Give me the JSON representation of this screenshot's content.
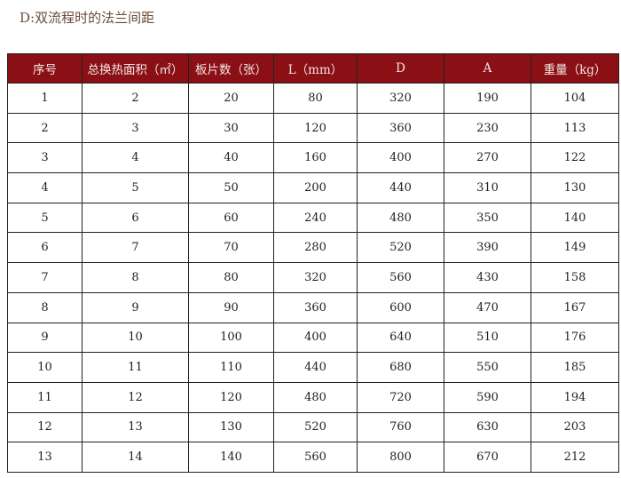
{
  "title": "D:双流程时的法兰间距",
  "colors": {
    "header_bg": "#8b1016",
    "header_text": "#f3e6e6"
  },
  "table": {
    "headers": [
      "序号",
      "总换热面积（㎡）",
      "板片数（张）",
      "L（mm）",
      "D",
      "A",
      "重量（kg）"
    ],
    "rows": [
      [
        "1",
        "2",
        "20",
        "80",
        "320",
        "190",
        "104"
      ],
      [
        "2",
        "3",
        "30",
        "120",
        "360",
        "230",
        "113"
      ],
      [
        "3",
        "4",
        "40",
        "160",
        "400",
        "270",
        "122"
      ],
      [
        "4",
        "5",
        "50",
        "200",
        "440",
        "310",
        "130"
      ],
      [
        "5",
        "6",
        "60",
        "240",
        "480",
        "350",
        "140"
      ],
      [
        "6",
        "7",
        "70",
        "280",
        "520",
        "390",
        "149"
      ],
      [
        "7",
        "8",
        "80",
        "320",
        "560",
        "430",
        "158"
      ],
      [
        "8",
        "9",
        "90",
        "360",
        "600",
        "470",
        "167"
      ],
      [
        "9",
        "10",
        "100",
        "400",
        "640",
        "510",
        "176"
      ],
      [
        "10",
        "11",
        "110",
        "440",
        "680",
        "550",
        "185"
      ],
      [
        "11",
        "12",
        "120",
        "480",
        "720",
        "590",
        "194"
      ],
      [
        "12",
        "13",
        "130",
        "520",
        "760",
        "630",
        "203"
      ],
      [
        "13",
        "14",
        "140",
        "560",
        "800",
        "670",
        "212"
      ]
    ]
  }
}
